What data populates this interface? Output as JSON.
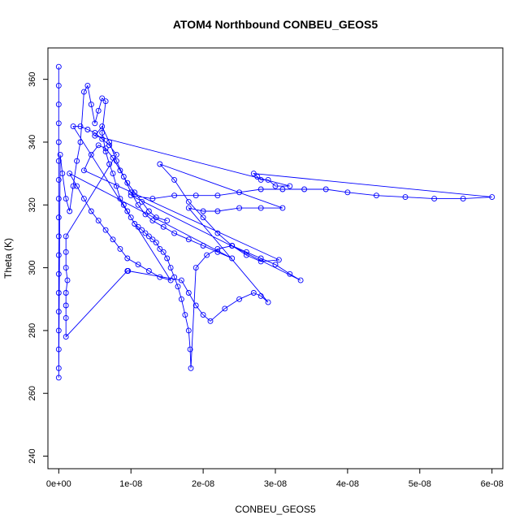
{
  "chart_data": {
    "type": "scatter",
    "title": "ATOM4 Northbound CONBEU_GEOS5",
    "xlabel": "CONBEU_GEOS5",
    "ylabel": "Theta (K)",
    "xlim": [
      -1.5e-09,
      6.15e-08
    ],
    "ylim": [
      236,
      370
    ],
    "xticks": [
      0,
      1e-08,
      2e-08,
      3e-08,
      4e-08,
      5e-08,
      6e-08
    ],
    "xtick_labels": [
      "0e+00",
      "1e-08",
      "2e-08",
      "3e-08",
      "4e-08",
      "5e-08",
      "6e-08"
    ],
    "yticks": [
      240,
      260,
      280,
      300,
      320,
      340,
      360
    ],
    "ytick_labels": [
      "240",
      "260",
      "280",
      "300",
      "320",
      "340",
      "360"
    ],
    "grid": false,
    "color": "#0000ff",
    "marker": "open-circle",
    "connected": true,
    "series": [
      {
        "points": [
          [
            0.0,
            364
          ],
          [
            0.0,
            358
          ],
          [
            0.0,
            352
          ],
          [
            0.0,
            346
          ],
          [
            0.0,
            340
          ],
          [
            0.0,
            334
          ],
          [
            0.0,
            328
          ],
          [
            0.0,
            322
          ],
          [
            0.0,
            316
          ],
          [
            0.0,
            310
          ],
          [
            0.0,
            304
          ],
          [
            0.0,
            298
          ],
          [
            0.0,
            292
          ],
          [
            0.0,
            286
          ],
          [
            0.0,
            280
          ],
          [
            0.0,
            274
          ],
          [
            0.0,
            268
          ],
          [
            0.0,
            265
          ],
          [
            2e-10,
            336
          ],
          [
            5e-10,
            330
          ],
          [
            1e-09,
            322
          ],
          [
            1.5e-09,
            318
          ],
          [
            2e-09,
            326
          ],
          [
            2.5e-09,
            334
          ],
          [
            3e-09,
            340
          ],
          [
            3.5e-09,
            356
          ],
          [
            4e-09,
            358
          ],
          [
            4.5e-09,
            352
          ],
          [
            5e-09,
            346
          ],
          [
            5.5e-09,
            350
          ],
          [
            6e-09,
            354
          ],
          [
            6.5e-09,
            353
          ],
          [
            6e-09,
            343
          ],
          [
            6.5e-09,
            337
          ],
          [
            7e-09,
            333
          ],
          [
            7.5e-09,
            330
          ],
          [
            8e-09,
            326
          ],
          [
            8.5e-09,
            322
          ],
          [
            9e-09,
            320
          ],
          [
            9.5e-09,
            318
          ],
          [
            1e-08,
            316
          ],
          [
            1.05e-08,
            314
          ],
          [
            1.1e-08,
            313
          ],
          [
            1.15e-08,
            312
          ],
          [
            1.2e-08,
            311
          ],
          [
            1.25e-08,
            310
          ],
          [
            1.3e-08,
            309
          ],
          [
            1.35e-08,
            308
          ],
          [
            1.4e-08,
            306
          ],
          [
            1.45e-08,
            305
          ],
          [
            1.5e-08,
            303
          ],
          [
            1.55e-08,
            300
          ],
          [
            1.6e-08,
            297
          ],
          [
            1.65e-08,
            294
          ],
          [
            1.7e-08,
            290
          ],
          [
            1.75e-08,
            285
          ],
          [
            1.8e-08,
            280
          ],
          [
            1.82e-08,
            274
          ],
          [
            1.83e-08,
            268
          ],
          [
            1.9e-08,
            300
          ],
          [
            2.05e-08,
            304
          ],
          [
            2.2e-08,
            306
          ],
          [
            2.4e-08,
            307
          ],
          [
            2.6e-08,
            305
          ],
          [
            2.8e-08,
            303
          ],
          [
            3e-08,
            301
          ],
          [
            3.2e-08,
            298
          ],
          [
            3.35e-08,
            296
          ],
          [
            1e-08,
            323
          ],
          [
            1.3e-08,
            322
          ],
          [
            1.6e-08,
            323
          ],
          [
            1.9e-08,
            323
          ],
          [
            2.2e-08,
            323
          ],
          [
            2.5e-08,
            324
          ],
          [
            2.8e-08,
            325
          ],
          [
            3.1e-08,
            325
          ],
          [
            3.4e-08,
            325
          ],
          [
            3.7e-08,
            325
          ],
          [
            4e-08,
            324
          ],
          [
            4.4e-08,
            323
          ],
          [
            4.8e-08,
            322.5
          ],
          [
            5.2e-08,
            322
          ],
          [
            5.6e-08,
            322
          ],
          [
            6e-08,
            322.5
          ],
          [
            2.7e-08,
            330
          ],
          [
            2.75e-08,
            329
          ],
          [
            2.8e-08,
            328
          ],
          [
            2.9e-08,
            328
          ],
          [
            3e-08,
            326
          ],
          [
            3.2e-08,
            326
          ],
          [
            5e-09,
            342
          ],
          [
            6e-09,
            345
          ],
          [
            7e-09,
            340
          ],
          [
            8e-09,
            334
          ],
          [
            9e-09,
            329
          ],
          [
            1e-08,
            324
          ],
          [
            1.1e-08,
            320
          ],
          [
            1.2e-08,
            317
          ],
          [
            1.3e-08,
            315
          ],
          [
            1.45e-08,
            313
          ],
          [
            1.6e-08,
            311
          ],
          [
            1.8e-08,
            309
          ],
          [
            2e-08,
            307
          ],
          [
            2.2e-08,
            305
          ],
          [
            2.4e-08,
            303
          ],
          [
            1.5e-09,
            330
          ],
          [
            2.5e-09,
            326
          ],
          [
            3.5e-09,
            322
          ],
          [
            4.5e-09,
            318
          ],
          [
            5.5e-09,
            315
          ],
          [
            6.5e-09,
            312
          ],
          [
            7.5e-09,
            309
          ],
          [
            8.5e-09,
            306
          ],
          [
            9.5e-09,
            303
          ],
          [
            1.1e-08,
            301
          ],
          [
            1.25e-08,
            299
          ],
          [
            1.4e-08,
            297
          ],
          [
            1.55e-08,
            296
          ],
          [
            2e-09,
            345
          ],
          [
            3e-09,
            345
          ],
          [
            4e-09,
            344
          ],
          [
            5e-09,
            343
          ],
          [
            6e-09,
            341
          ],
          [
            7e-09,
            339
          ],
          [
            8e-09,
            336
          ],
          [
            1e-09,
            310
          ],
          [
            1e-09,
            305
          ],
          [
            1e-09,
            300
          ],
          [
            1.2e-09,
            296
          ],
          [
            1e-09,
            292
          ],
          [
            1e-09,
            288
          ],
          [
            1e-09,
            284
          ],
          [
            1e-09,
            278
          ],
          [
            9.5e-09,
            299
          ],
          [
            9.6e-09,
            299
          ],
          [
            1.7e-08,
            296
          ],
          [
            1.8e-08,
            292
          ],
          [
            1.9e-08,
            288
          ],
          [
            2e-08,
            285
          ],
          [
            2.1e-08,
            283
          ],
          [
            2.3e-08,
            287
          ],
          [
            2.5e-08,
            290
          ],
          [
            2.7e-08,
            292
          ],
          [
            2.8e-08,
            291
          ],
          [
            2.9e-08,
            289
          ],
          [
            1.8e-08,
            319
          ],
          [
            2e-08,
            318
          ],
          [
            2.2e-08,
            318
          ],
          [
            2.5e-08,
            319
          ],
          [
            2.8e-08,
            319
          ],
          [
            3.1e-08,
            319
          ],
          [
            1.4e-08,
            333
          ],
          [
            1.6e-08,
            328
          ],
          [
            1.8e-08,
            321
          ],
          [
            2e-08,
            316
          ],
          [
            2.2e-08,
            311
          ],
          [
            2.4e-08,
            307
          ],
          [
            2.6e-08,
            304
          ],
          [
            2.8e-08,
            302
          ],
          [
            3.05e-08,
            302.5
          ],
          [
            3.5e-09,
            331
          ],
          [
            4.5e-09,
            336
          ],
          [
            5.5e-09,
            339
          ],
          [
            6.5e-09,
            338
          ],
          [
            7.5e-09,
            335
          ],
          [
            8.5e-09,
            331
          ],
          [
            9.5e-09,
            327
          ],
          [
            1.05e-08,
            324
          ],
          [
            1.15e-08,
            321
          ],
          [
            1.25e-08,
            318
          ],
          [
            1.35e-08,
            316
          ],
          [
            1.5e-08,
            315
          ]
        ]
      }
    ]
  }
}
